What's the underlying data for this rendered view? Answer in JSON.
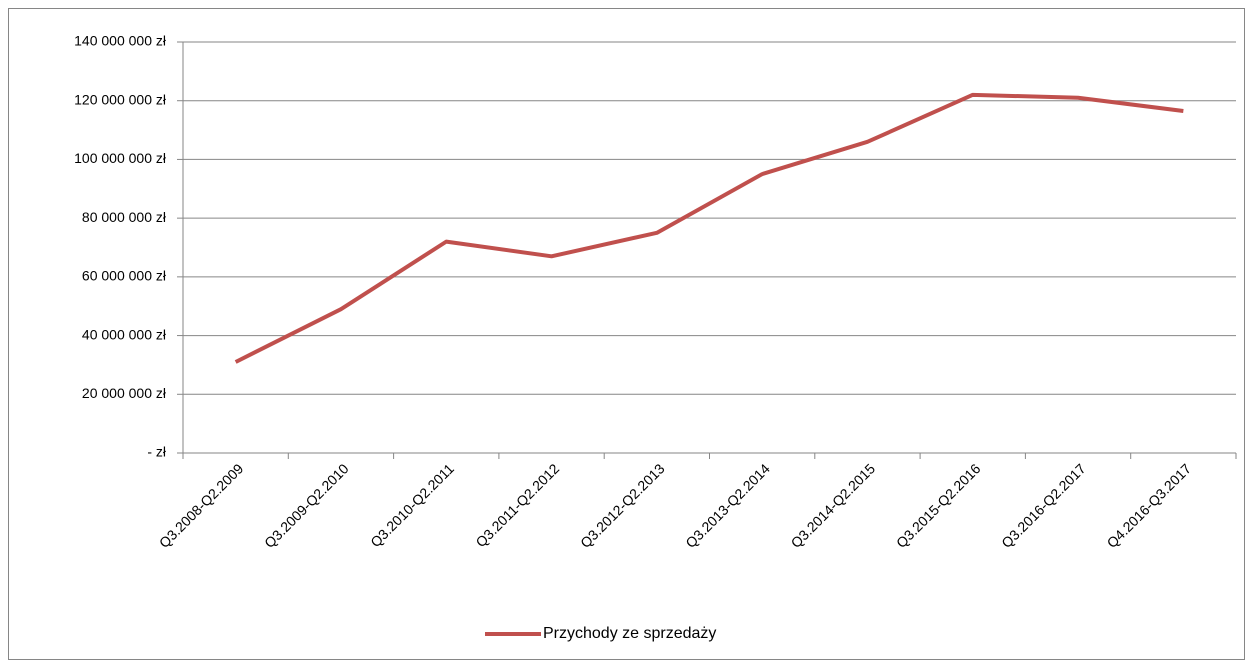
{
  "chart_data": {
    "type": "line",
    "categories": [
      "Q3.2008-Q2.2009",
      "Q3.2009-Q2.2010",
      "Q3.2010-Q2.2011",
      "Q3.2011-Q2.2012",
      "Q3.2012-Q2.2013",
      "Q3.2013-Q2.2014",
      "Q3.2014-Q2.2015",
      "Q3.2015-Q2.2016",
      "Q3.2016-Q2.2017",
      "Q4.2016-Q3.2017"
    ],
    "series": [
      {
        "name": "Przychody ze sprzedaży",
        "color": "#c0504d",
        "values": [
          31000000,
          49000000,
          72000000,
          67000000,
          75000000,
          95000000,
          106000000,
          122000000,
          121000000,
          116500000
        ]
      }
    ],
    "ylim": [
      0,
      140000000
    ],
    "yticks": [
      {
        "value": 0,
        "label": "- zł"
      },
      {
        "value": 20000000,
        "label": "20 000 000 zł"
      },
      {
        "value": 40000000,
        "label": "40 000 000 zł"
      },
      {
        "value": 60000000,
        "label": "60 000 000 zł"
      },
      {
        "value": 80000000,
        "label": "80 000 000 zł"
      },
      {
        "value": 100000000,
        "label": "100 000 000 zł"
      },
      {
        "value": 120000000,
        "label": "120 000 000 zł"
      },
      {
        "value": 140000000,
        "label": "140 000 000 zł"
      }
    ],
    "grid": true,
    "legend": "bottom"
  }
}
